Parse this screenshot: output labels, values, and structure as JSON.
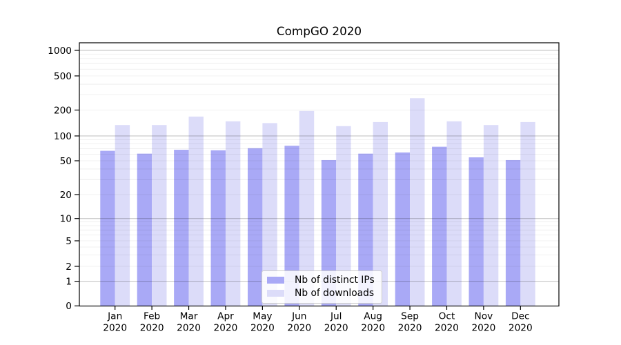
{
  "chart_data": {
    "type": "bar",
    "title": "CompGO 2020",
    "xlabel": "",
    "ylabel": "",
    "categories": [
      "Jan 2020",
      "Feb 2020",
      "Mar 2020",
      "Apr 2020",
      "May 2020",
      "Jun 2020",
      "Jul 2020",
      "Aug 2020",
      "Sep 2020",
      "Oct 2020",
      "Nov 2020",
      "Dec 2020"
    ],
    "series": [
      {
        "name": "Nb of distinct IPs",
        "color": "#a9a9f6",
        "values": [
          66,
          61,
          68,
          67,
          71,
          76,
          51,
          61,
          63,
          74,
          55,
          51
        ]
      },
      {
        "name": "Nb of downloads",
        "color": "#dcdcf9",
        "values": [
          134,
          134,
          168,
          148,
          141,
          195,
          130,
          145,
          275,
          148,
          134,
          145
        ]
      }
    ],
    "yscale": "symlog",
    "yticks": [
      0,
      1,
      2,
      5,
      10,
      20,
      50,
      100,
      200,
      500,
      1000
    ],
    "ytick_labels": [
      "0",
      "1",
      "2",
      "5",
      "10",
      "20",
      "50",
      "100",
      "200",
      "500",
      "1000"
    ],
    "ylim": [
      0,
      1200
    ],
    "grid": "horizontal, major and minor",
    "legend_position": "lower center"
  },
  "colors": {
    "major_grid": "rgba(0,0,0,0.26)",
    "minor_grid": "rgba(0,0,0,0.08)",
    "axis": "#000000",
    "background": "#ffffff"
  }
}
